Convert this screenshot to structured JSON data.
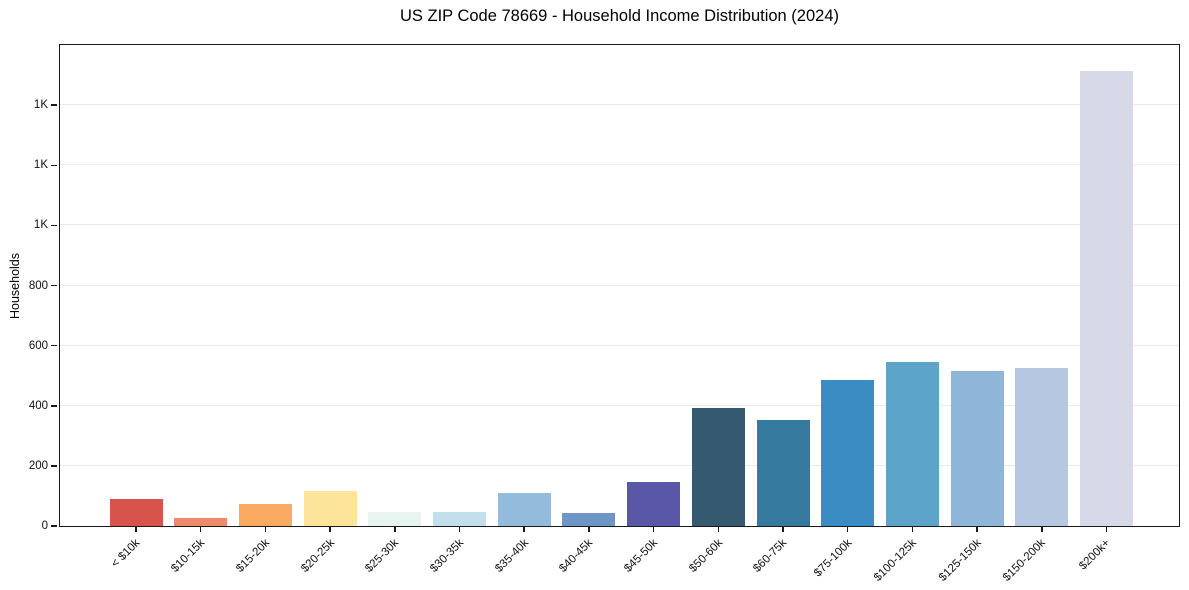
{
  "title": "US ZIP Code 78669 - Household Income Distribution (2024)",
  "chart_data": {
    "type": "bar",
    "title": "US ZIP Code 78669 - Household Income Distribution (2024)",
    "xlabel": "",
    "ylabel": "Households",
    "ylim": [
      0,
      1600
    ],
    "grid": true,
    "legend": "none",
    "categories": [
      "< $10k",
      "$10-15k",
      "$15-20k",
      "$20-25k",
      "$25-30k",
      "$30-35k",
      "$35-40k",
      "$40-45k",
      "$45-50k",
      "$50-60k",
      "$60-75k",
      "$75-100k",
      "$100-125k",
      "$125-150k",
      "$150-200k",
      "$200k+"
    ],
    "values": [
      90,
      27,
      73,
      115,
      48,
      46,
      109,
      43,
      147,
      393,
      353,
      487,
      547,
      517,
      525,
      1515
    ],
    "bar_colors": [
      "#d6544c",
      "#ee8a6a",
      "#faab61",
      "#fce49b",
      "#e8f4f0",
      "#c2e0ec",
      "#93bcdc",
      "#6d95c6",
      "#5a57a8",
      "#35596e",
      "#35799f",
      "#3a8cc3",
      "#5ca4ca",
      "#8fb5d9",
      "#b5c7e1",
      "#d8d9e8"
    ],
    "y_ticks": [
      {
        "value": 0,
        "label": "0"
      },
      {
        "value": 200,
        "label": "200"
      },
      {
        "value": 400,
        "label": "400"
      },
      {
        "value": 600,
        "label": "600"
      },
      {
        "value": 800,
        "label": "800"
      },
      {
        "value": 1000,
        "label": "1K"
      },
      {
        "value": 1200,
        "label": "1K"
      },
      {
        "value": 1400,
        "label": "1K"
      }
    ]
  },
  "colors": {
    "background": "#ffffff",
    "spine": "#1a1a1a",
    "gridline": "#e9e9f0",
    "tick_text": "#111111",
    "title_text": "#000000"
  }
}
